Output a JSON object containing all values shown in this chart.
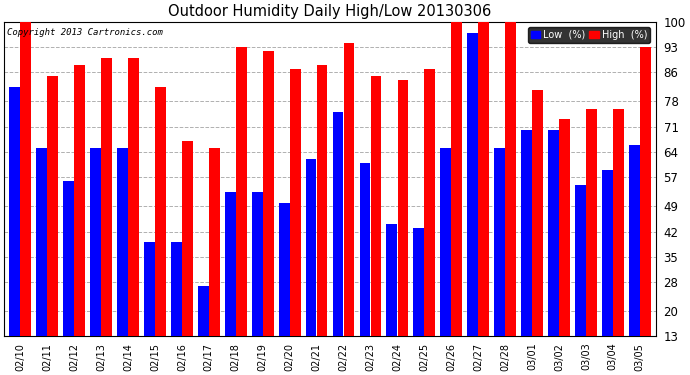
{
  "title": "Outdoor Humidity Daily High/Low 20130306",
  "copyright": "Copyright 2013 Cartronics.com",
  "categories": [
    "02/10",
    "02/11",
    "02/12",
    "02/13",
    "02/14",
    "02/15",
    "02/16",
    "02/17",
    "02/18",
    "02/19",
    "02/20",
    "02/21",
    "02/22",
    "02/23",
    "02/24",
    "02/25",
    "02/26",
    "02/27",
    "02/28",
    "03/01",
    "03/02",
    "03/03",
    "03/04",
    "03/05"
  ],
  "high": [
    100,
    85,
    88,
    90,
    90,
    82,
    67,
    65,
    93,
    92,
    87,
    88,
    94,
    85,
    84,
    87,
    100,
    100,
    100,
    81,
    73,
    76,
    76,
    93
  ],
  "low": [
    82,
    65,
    56,
    65,
    65,
    39,
    39,
    27,
    53,
    53,
    50,
    62,
    75,
    61,
    44,
    43,
    65,
    97,
    65,
    70,
    70,
    55,
    59,
    66
  ],
  "high_color": "#ff0000",
  "low_color": "#0000ff",
  "bg_color": "#ffffff",
  "plot_bg_color": "#ffffff",
  "grid_color": "#b0b0b0",
  "yticks": [
    13,
    20,
    28,
    35,
    42,
    49,
    57,
    64,
    71,
    78,
    86,
    93,
    100
  ],
  "ymin": 13,
  "ymax": 100,
  "legend_low_label": "Low  (%)",
  "legend_high_label": "High  (%)"
}
